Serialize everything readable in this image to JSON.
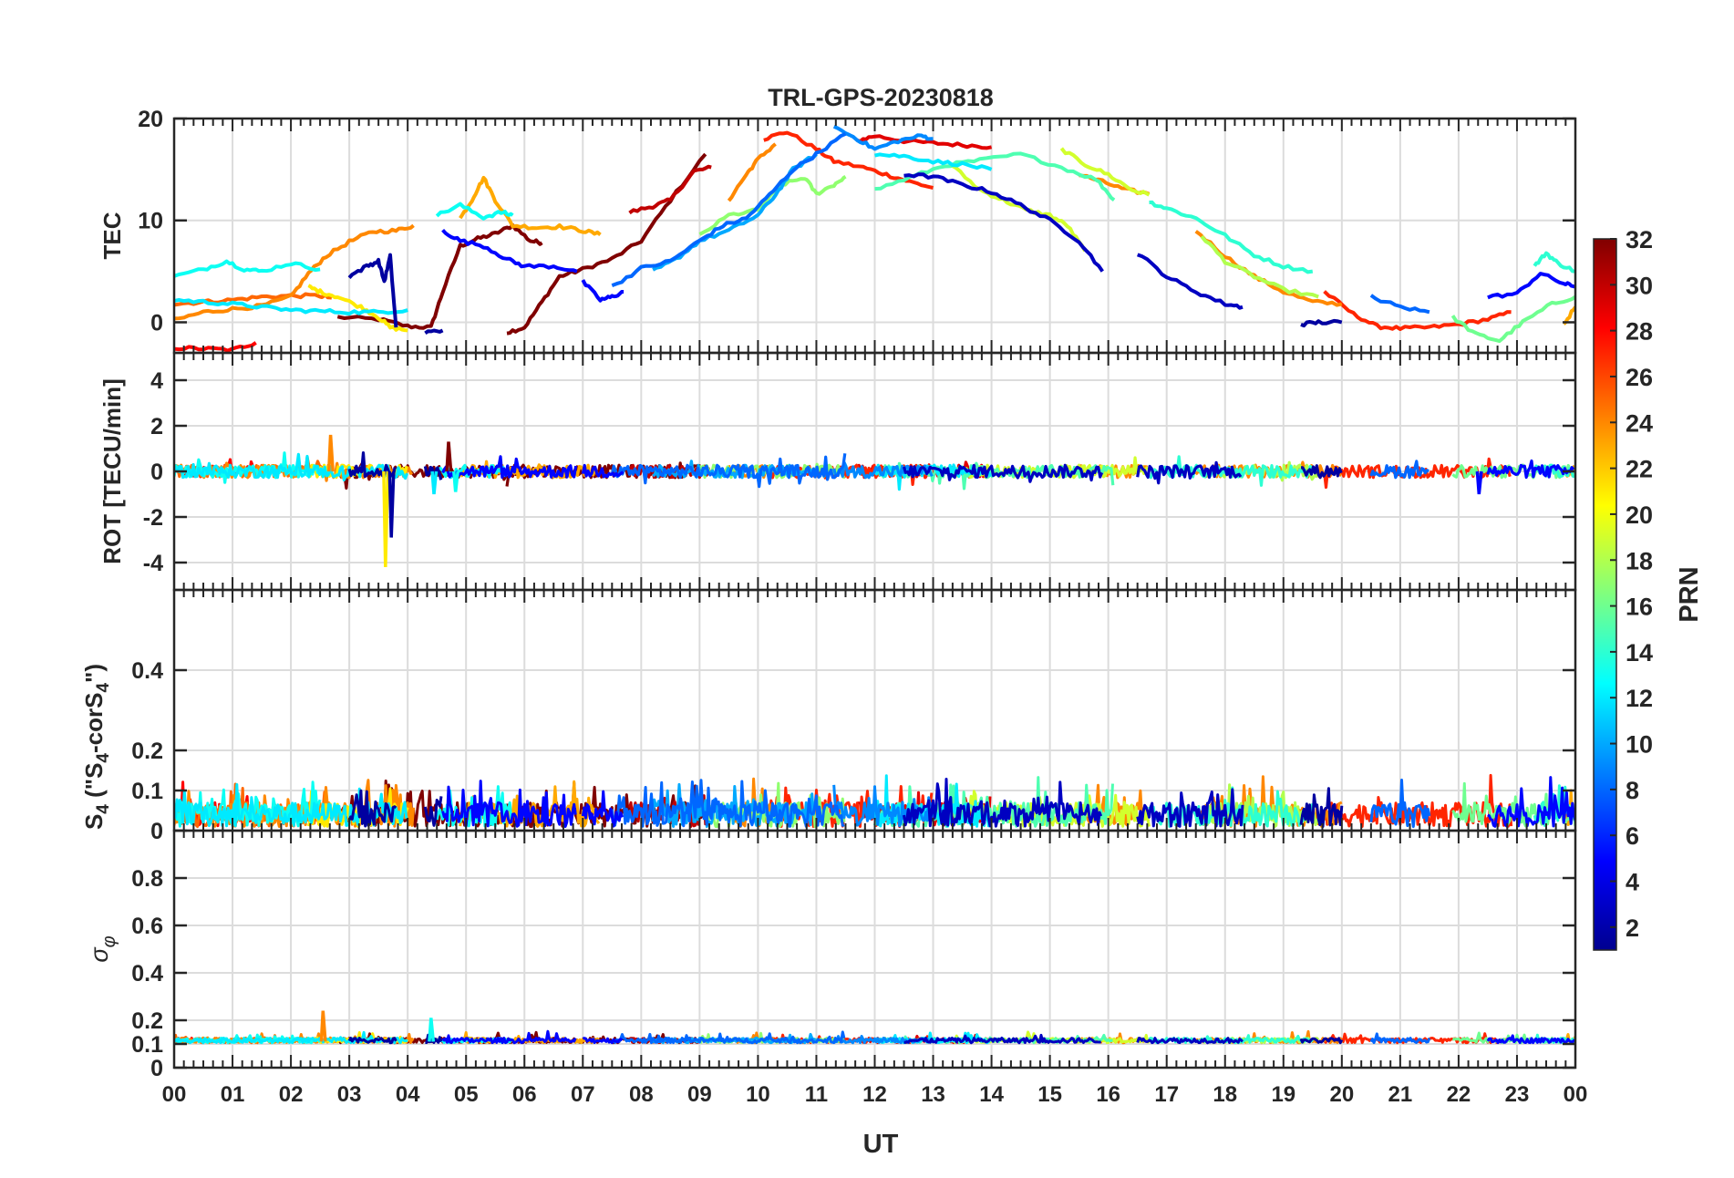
{
  "chart_data": {
    "type": "line",
    "title": "TRL-GPS-20230818",
    "xlabel": "UT",
    "x_ticks": [
      "00",
      "01",
      "02",
      "03",
      "04",
      "05",
      "06",
      "07",
      "08",
      "09",
      "10",
      "11",
      "12",
      "13",
      "14",
      "15",
      "16",
      "17",
      "18",
      "19",
      "20",
      "21",
      "22",
      "23",
      "00"
    ],
    "xlim": [
      0,
      24
    ],
    "grid": true,
    "colorbar": {
      "label": "PRN",
      "range": [
        1,
        32
      ],
      "ticks": [
        "2",
        "4",
        "6",
        "8",
        "10",
        "12",
        "14",
        "16",
        "18",
        "20",
        "22",
        "24",
        "26",
        "28",
        "30",
        "32"
      ],
      "colormap": "jet"
    },
    "panels": [
      {
        "key": "tec",
        "ylabel": "TEC",
        "ylim": [
          -3,
          20
        ],
        "yticks": [
          "0",
          "10",
          "20"
        ],
        "series": [
          {
            "prn": 32,
            "x": [
              2.8,
              3.5,
              4.0,
              4.4,
              4.6,
              4.9,
              5.2,
              5.5,
              5.8,
              6.1,
              6.3
            ],
            "y": [
              0.5,
              0.3,
              -0.4,
              -0.5,
              3.0,
              7.5,
              8.2,
              8.7,
              9.5,
              8.0,
              7.8
            ]
          },
          {
            "prn": 32,
            "x": [
              5.7,
              6.0,
              6.3,
              6.6,
              7.0,
              7.5,
              8.0,
              8.5,
              9.1
            ],
            "y": [
              -1.0,
              -0.5,
              2.0,
              4.5,
              5.2,
              6.2,
              8.0,
              12.0,
              16.5
            ]
          },
          {
            "prn": 30,
            "x": [
              7.8,
              8.2,
              8.5,
              8.9,
              9.2
            ],
            "y": [
              10.8,
              11.4,
              12.0,
              14.8,
              15.2
            ]
          },
          {
            "prn": 29,
            "x": [
              11.7,
              12.0,
              12.5,
              13.0,
              13.5,
              14.0
            ],
            "y": [
              17.8,
              18.3,
              17.8,
              17.6,
              17.4,
              17.2
            ]
          },
          {
            "prn": 27,
            "x": [
              10.1,
              10.5,
              11.0,
              11.3,
              11.8,
              12.2,
              12.6,
              13.0
            ],
            "y": [
              18.0,
              18.7,
              17.0,
              15.8,
              15.2,
              14.5,
              13.8,
              13.2
            ]
          },
          {
            "prn": 27,
            "x": [
              19.7,
              20.2,
              20.6,
              21.0,
              21.5,
              22.0,
              22.5,
              22.9
            ],
            "y": [
              3.0,
              0.8,
              -0.4,
              -0.6,
              -0.5,
              -0.2,
              0.3,
              1.0
            ]
          },
          {
            "prn": 28,
            "x": [
              0.0,
              0.5,
              1.0,
              1.4
            ],
            "y": [
              -2.5,
              -2.6,
              -2.7,
              -2.0
            ]
          },
          {
            "prn": 25,
            "x": [
              0.0,
              0.5,
              1.0,
              1.5,
              2.0,
              2.5,
              2.7
            ],
            "y": [
              1.8,
              2.0,
              2.2,
              2.5,
              2.6,
              2.6,
              2.4
            ]
          },
          {
            "prn": 24,
            "x": [
              0.0,
              0.5,
              1.0,
              1.5,
              2.0,
              2.3,
              2.6,
              3.0,
              3.4,
              3.8,
              4.1
            ],
            "y": [
              0.2,
              1.0,
              1.3,
              1.6,
              2.5,
              4.8,
              6.5,
              7.9,
              8.9,
              9.0,
              9.5
            ]
          },
          {
            "prn": 23,
            "x": [
              4.9,
              5.1,
              5.3,
              5.5,
              5.8,
              6.2,
              6.6,
              7.0,
              7.3
            ],
            "y": [
              10.2,
              12.0,
              14.2,
              12.0,
              9.5,
              9.3,
              9.4,
              9.0,
              8.6
            ]
          },
          {
            "prn": 24,
            "x": [
              9.5,
              9.8,
              10.0,
              10.3
            ],
            "y": [
              12.0,
              14.5,
              16.0,
              17.5
            ]
          },
          {
            "prn": 24,
            "x": [
              15.5,
              15.9,
              16.3,
              16.7
            ],
            "y": [
              14.5,
              13.8,
              13.0,
              12.6
            ]
          },
          {
            "prn": 24,
            "x": [
              17.5,
              18.0,
              18.5,
              19.0,
              19.5,
              20.0
            ],
            "y": [
              9.0,
              6.5,
              4.5,
              3.0,
              2.0,
              1.8
            ]
          },
          {
            "prn": 23,
            "x": [
              23.8,
              24.0
            ],
            "y": [
              -0.2,
              1.5
            ]
          },
          {
            "prn": 21,
            "x": [
              2.3,
              2.5,
              2.8,
              3.2,
              3.5,
              3.7,
              4.0
            ],
            "y": [
              3.5,
              3.0,
              2.5,
              1.5,
              0.5,
              -0.5,
              -0.8
            ]
          },
          {
            "prn": 19,
            "x": [
              13.3,
              13.8,
              14.2,
              14.6,
              15.0,
              15.3,
              15.6
            ],
            "y": [
              15.5,
              13.0,
              12.0,
              11.0,
              10.5,
              9.5,
              7.0
            ]
          },
          {
            "prn": 19,
            "x": [
              15.2,
              15.6,
              16.0,
              16.4,
              16.7
            ],
            "y": [
              17.0,
              15.5,
              14.5,
              13.0,
              12.5
            ]
          },
          {
            "prn": 18,
            "x": [
              17.6,
              18.0,
              18.5,
              19.0,
              19.6
            ],
            "y": [
              8.5,
              6.0,
              4.5,
              3.2,
              2.5
            ]
          },
          {
            "prn": 17,
            "x": [
              9.0,
              9.5,
              10.0,
              10.4,
              10.8,
              11.0,
              11.3,
              11.5
            ],
            "y": [
              8.5,
              10.5,
              11.0,
              13.5,
              14.2,
              12.6,
              13.5,
              14.3
            ]
          },
          {
            "prn": 16,
            "x": [
              21.9,
              22.3,
              22.7,
              23.1,
              23.6,
              24.0
            ],
            "y": [
              0.5,
              -1.2,
              -1.8,
              0.0,
              1.8,
              2.5
            ]
          },
          {
            "prn": 15,
            "x": [
              12.0,
              12.6,
              13.2,
              13.8,
              14.5,
              15.2,
              15.8,
              16.1
            ],
            "y": [
              13.0,
              14.2,
              15.4,
              15.9,
              16.5,
              15.2,
              14.0,
              12.0
            ]
          },
          {
            "prn": 14,
            "x": [
              16.7,
              17.0,
              17.5,
              18.0,
              18.5,
              19.0,
              19.5
            ],
            "y": [
              11.8,
              11.2,
              10.2,
              8.5,
              6.6,
              5.5,
              5.0
            ]
          },
          {
            "prn": 14,
            "x": [
              23.3,
              23.5,
              23.7,
              24.0
            ],
            "y": [
              5.5,
              6.8,
              5.8,
              5.0
            ]
          },
          {
            "prn": 13,
            "x": [
              0.0,
              0.5,
              0.9,
              1.2,
              1.5,
              2.0,
              2.5
            ],
            "y": [
              4.5,
              5.2,
              6.0,
              5.2,
              5.0,
              5.8,
              5.2
            ]
          },
          {
            "prn": 13,
            "x": [
              4.5,
              4.9,
              5.3,
              5.6,
              5.8
            ],
            "y": [
              10.5,
              11.5,
              10.3,
              10.8,
              10.5
            ]
          },
          {
            "prn": 12,
            "x": [
              0.0,
              0.5,
              1.0,
              1.5,
              2.0,
              2.5,
              3.0,
              3.5,
              4.0
            ],
            "y": [
              2.2,
              2.0,
              1.8,
              1.5,
              1.2,
              1.1,
              1.0,
              1.0,
              1.2
            ]
          },
          {
            "prn": 12,
            "x": [
              12.0,
              12.5,
              13.0,
              13.5,
              14.0
            ],
            "y": [
              16.5,
              16.3,
              15.8,
              15.5,
              15.0
            ]
          },
          {
            "prn": 10,
            "x": [
              8.2,
              8.6,
              9.0,
              9.5,
              10.0,
              10.3,
              10.6,
              11.0
            ],
            "y": [
              5.0,
              6.2,
              8.0,
              9.0,
              10.5,
              12.5,
              15.0,
              16.5
            ]
          },
          {
            "prn": 9,
            "x": [
              11.3,
              11.7,
              12.0,
              12.4,
              12.8,
              13.0
            ],
            "y": [
              19.2,
              18.0,
              17.0,
              17.8,
              18.3,
              18.0
            ]
          },
          {
            "prn": 8,
            "x": [
              7.5,
              8.0,
              8.5,
              9.0,
              9.4,
              9.8,
              10.2,
              10.6,
              11.0,
              11.5
            ],
            "y": [
              3.5,
              5.3,
              6.0,
              8.0,
              9.5,
              10.2,
              12.5,
              15.0,
              16.5,
              18.5
            ]
          },
          {
            "prn": 8,
            "x": [
              20.5,
              21.0,
              21.5
            ],
            "y": [
              2.5,
              1.5,
              1.0
            ]
          },
          {
            "prn": 5,
            "x": [
              4.6,
              4.9,
              5.3,
              5.7,
              6.0,
              6.5,
              6.9
            ],
            "y": [
              9.0,
              8.0,
              7.5,
              6.2,
              5.5,
              5.5,
              5.0
            ]
          },
          {
            "prn": 5,
            "x": [
              7.0,
              7.3,
              7.5,
              7.7
            ],
            "y": [
              4.0,
              2.2,
              2.5,
              3.0
            ]
          },
          {
            "prn": 5,
            "x": [
              22.5,
              23.0,
              23.4,
              23.8,
              24.0
            ],
            "y": [
              2.5,
              2.8,
              4.8,
              3.8,
              3.5
            ]
          },
          {
            "prn": 3,
            "x": [
              12.5,
              13.0,
              13.5,
              14.0,
              14.5,
              15.0,
              15.5,
              15.9
            ],
            "y": [
              14.5,
              14.3,
              13.5,
              12.8,
              11.5,
              10.0,
              8.0,
              5.0
            ]
          },
          {
            "prn": 3,
            "x": [
              16.5,
              17.0,
              17.5,
              18.0,
              18.3
            ],
            "y": [
              6.8,
              4.5,
              3.0,
              1.8,
              1.5
            ]
          },
          {
            "prn": 2,
            "x": [
              3.0,
              3.3,
              3.5,
              3.6,
              3.7,
              3.8
            ],
            "y": [
              4.5,
              5.5,
              6.0,
              4.0,
              6.5,
              -0.5
            ]
          },
          {
            "prn": 2,
            "x": [
              4.3,
              4.6
            ],
            "y": [
              -1.0,
              -0.8
            ]
          },
          {
            "prn": 2,
            "x": [
              19.3,
              19.6,
              20.0
            ],
            "y": [
              -0.2,
              0.0,
              0.0
            ]
          }
        ]
      },
      {
        "key": "rot",
        "ylabel": "ROT [TECU/min]",
        "ylim": [
          -5.2,
          5.2
        ],
        "yticks": [
          "-4",
          "-2",
          "0",
          "2",
          "4"
        ],
        "spikes": [
          {
            "prn": 21,
            "x": 3.62,
            "y": -4.2
          },
          {
            "prn": 2,
            "x": 3.72,
            "y": -2.9
          },
          {
            "prn": 24,
            "x": 2.68,
            "y": 1.6
          },
          {
            "prn": 32,
            "x": 4.7,
            "y": 1.3
          },
          {
            "prn": 12,
            "x": 4.45,
            "y": -1.0
          },
          {
            "prn": 13,
            "x": 4.82,
            "y": -0.9
          },
          {
            "prn": 5,
            "x": 22.35,
            "y": -1.0
          }
        ]
      },
      {
        "key": "s4",
        "ylabel": "S_4 (\"S_4-corS_4\")",
        "ylim": [
          0,
          0.6
        ],
        "yticks": [
          "0",
          "0.1",
          "0.2",
          "0.4"
        ]
      },
      {
        "key": "sigma",
        "ylabel": "σ_φ",
        "ylim": [
          0,
          1
        ],
        "yticks": [
          "0",
          "0.1",
          "0.2",
          "0.4",
          "0.6",
          "0.8"
        ],
        "spikes": [
          {
            "prn": 24,
            "x": 2.55,
            "y": 0.24
          },
          {
            "prn": 13,
            "x": 4.4,
            "y": 0.21
          }
        ]
      }
    ]
  }
}
